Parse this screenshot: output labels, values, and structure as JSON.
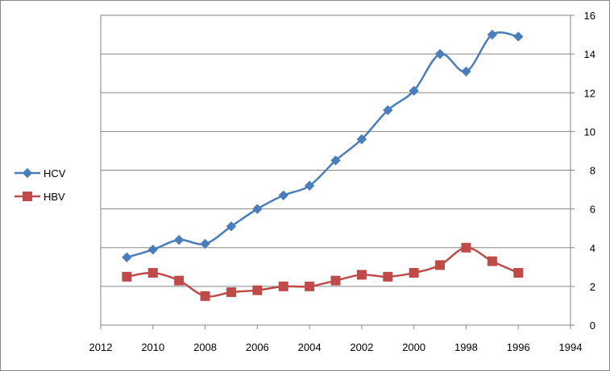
{
  "chart_data": {
    "type": "line",
    "x_reversed": true,
    "xlim": [
      1994,
      2012
    ],
    "x_ticks": [
      2012,
      2010,
      2008,
      2006,
      2004,
      2002,
      2000,
      1998,
      1996,
      1994
    ],
    "ylim": [
      0,
      16
    ],
    "y_ticks": [
      0,
      2,
      4,
      6,
      8,
      10,
      12,
      14,
      16
    ],
    "y_axis_side": "right",
    "grid": "horizontal",
    "legend_position": "left",
    "x": [
      2011,
      2010,
      2009,
      2008,
      2007,
      2006,
      2005,
      2004,
      2003,
      2002,
      2001,
      2000,
      1999,
      1998,
      1997,
      1996
    ],
    "series": [
      {
        "name": "HCV",
        "color": "#4a7ebb",
        "marker": "diamond",
        "values": [
          3.5,
          3.9,
          4.4,
          4.2,
          5.1,
          6.0,
          6.7,
          7.2,
          8.5,
          9.6,
          11.1,
          12.1,
          14.0,
          13.1,
          15.0,
          14.9
        ]
      },
      {
        "name": "HBV",
        "color": "#be4b48",
        "marker": "square",
        "values": [
          2.5,
          2.7,
          2.3,
          1.5,
          1.7,
          1.8,
          2.0,
          2.0,
          2.3,
          2.6,
          2.5,
          2.7,
          3.1,
          4.0,
          3.3,
          2.7
        ]
      }
    ]
  }
}
